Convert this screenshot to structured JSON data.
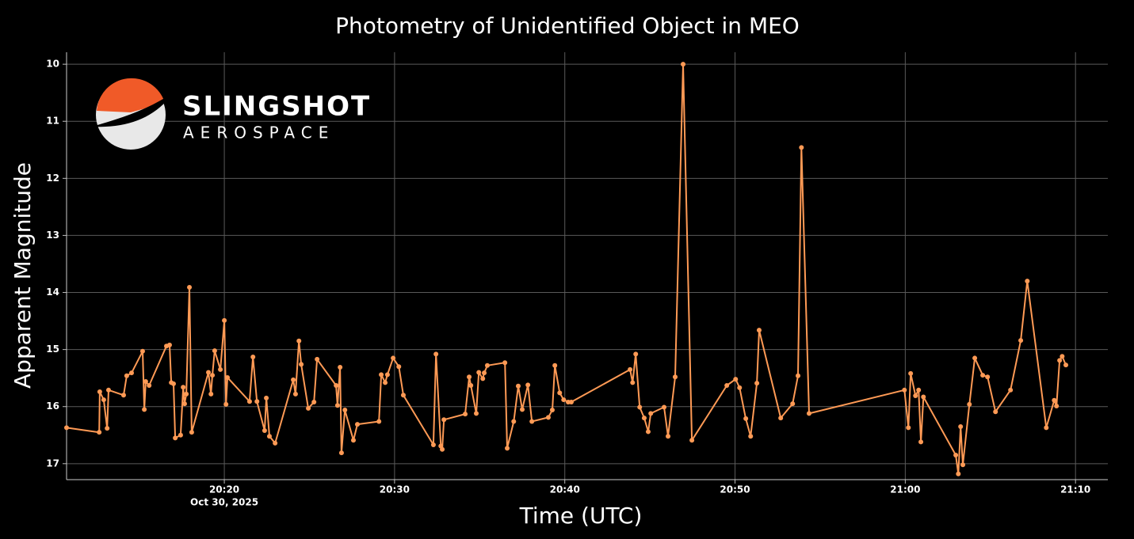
{
  "chart_data": {
    "type": "line",
    "title": "Photometry of Unidentified Object in MEO",
    "x_label": "Time (UTC)",
    "y_label": "Apparent Magnitude",
    "x_date": "Oct 30, 2025",
    "logo": {
      "name": "SLINGSHOT",
      "tagline": "AEROSPACE"
    },
    "color": "#ff9a55",
    "grid": true,
    "y_inverted": true,
    "xlim": [
      "20:10:44",
      "21:11:54"
    ],
    "xticks": [
      "20:20",
      "20:30",
      "20:40",
      "20:50",
      "21:00",
      "21:10"
    ],
    "ylim": [
      17.28,
      9.79
    ],
    "yticks": [
      10,
      11,
      12,
      13,
      14,
      15,
      16,
      17
    ],
    "x": [
      "20:10:44",
      "20:12:39",
      "20:12:41",
      "20:12:55",
      "20:13:07",
      "20:13:12",
      "20:14:05",
      "20:14:16",
      "20:14:33",
      "20:15:12",
      "20:15:18",
      "20:15:23",
      "20:15:35",
      "20:16:36",
      "20:16:47",
      "20:16:53",
      "20:17:01",
      "20:17:07",
      "20:17:26",
      "20:17:35",
      "20:17:40",
      "20:17:46",
      "20:17:57",
      "20:18:05",
      "20:19:04",
      "20:19:13",
      "20:19:18",
      "20:19:26",
      "20:19:46",
      "20:20:00",
      "20:20:06",
      "20:20:11",
      "20:21:29",
      "20:21:41",
      "20:21:55",
      "20:22:22",
      "20:22:28",
      "20:22:39",
      "20:22:59",
      "20:24:03",
      "20:24:11",
      "20:24:23",
      "20:24:31",
      "20:24:56",
      "20:25:16",
      "20:25:27",
      "20:26:34",
      "20:26:39",
      "20:26:48",
      "20:26:53",
      "20:27:05",
      "20:27:35",
      "20:27:49",
      "20:29:05",
      "20:29:13",
      "20:29:27",
      "20:29:35",
      "20:29:55",
      "20:30:15",
      "20:30:31",
      "20:32:17",
      "20:32:26",
      "20:32:43",
      "20:32:48",
      "20:32:54",
      "20:34:09",
      "20:34:23",
      "20:34:29",
      "20:34:48",
      "20:34:57",
      "20:35:11",
      "20:35:16",
      "20:35:27",
      "20:36:29",
      "20:36:37",
      "20:37:00",
      "20:37:16",
      "20:37:30",
      "20:37:50",
      "20:38:04",
      "20:39:02",
      "20:39:16",
      "20:39:25",
      "20:39:42",
      "20:39:56",
      "20:40:12",
      "20:40:23",
      "20:43:50",
      "20:43:59",
      "20:44:10",
      "20:44:24",
      "20:44:40",
      "20:44:54",
      "20:45:03",
      "20:45:50",
      "20:46:04",
      "20:46:29",
      "20:46:57",
      "20:47:28",
      "20:49:31",
      "20:50:02",
      "20:50:16",
      "20:50:38",
      "20:50:55",
      "20:51:17",
      "20:51:25",
      "20:52:41",
      "20:53:23",
      "20:53:42",
      "20:53:54",
      "20:54:21",
      "20:59:57",
      "21:00:11",
      "21:00:19",
      "21:00:36",
      "21:00:47",
      "21:00:55",
      "21:01:04",
      "21:02:58",
      "21:03:07",
      "21:03:15",
      "21:03:23",
      "21:03:46",
      "21:04:05",
      "21:04:33",
      "21:04:50",
      "21:05:18",
      "21:06:11",
      "21:06:47",
      "21:07:10",
      "21:08:17",
      "21:08:45",
      "21:08:53",
      "21:09:04",
      "21:09:13",
      "21:09:26"
    ],
    "values": [
      16.37,
      16.45,
      15.74,
      15.88,
      16.38,
      15.71,
      15.8,
      15.46,
      15.41,
      15.03,
      16.05,
      15.56,
      15.63,
      14.94,
      14.92,
      15.58,
      15.6,
      16.55,
      16.5,
      15.66,
      15.95,
      15.78,
      13.91,
      16.45,
      15.4,
      15.78,
      15.45,
      15.02,
      15.35,
      14.49,
      15.96,
      15.49,
      15.91,
      15.13,
      15.91,
      16.42,
      15.85,
      16.52,
      16.64,
      15.53,
      15.78,
      14.85,
      15.26,
      16.03,
      15.92,
      15.17,
      15.63,
      15.98,
      15.31,
      16.81,
      16.06,
      16.59,
      16.31,
      16.26,
      15.44,
      15.58,
      15.44,
      15.15,
      15.3,
      15.8,
      16.67,
      15.08,
      16.69,
      16.75,
      16.23,
      16.13,
      15.48,
      15.63,
      16.12,
      15.4,
      15.51,
      15.41,
      15.28,
      15.23,
      16.73,
      16.26,
      15.64,
      16.05,
      15.62,
      16.26,
      16.19,
      16.06,
      15.28,
      15.76,
      15.88,
      15.92,
      15.92,
      15.35,
      15.58,
      15.08,
      16.01,
      16.2,
      16.44,
      16.12,
      16.01,
      16.52,
      15.48,
      10.0,
      16.59,
      15.63,
      15.52,
      15.67,
      16.21,
      16.52,
      15.59,
      14.66,
      16.2,
      15.95,
      15.46,
      11.46,
      16.12,
      15.71,
      16.37,
      15.42,
      15.81,
      15.71,
      16.62,
      15.83,
      16.85,
      17.18,
      16.35,
      17.02,
      15.96,
      15.15,
      15.45,
      15.48,
      16.09,
      15.71,
      14.84,
      13.8,
      16.37,
      15.89,
      15.99,
      15.19,
      15.12,
      15.27
    ]
  }
}
